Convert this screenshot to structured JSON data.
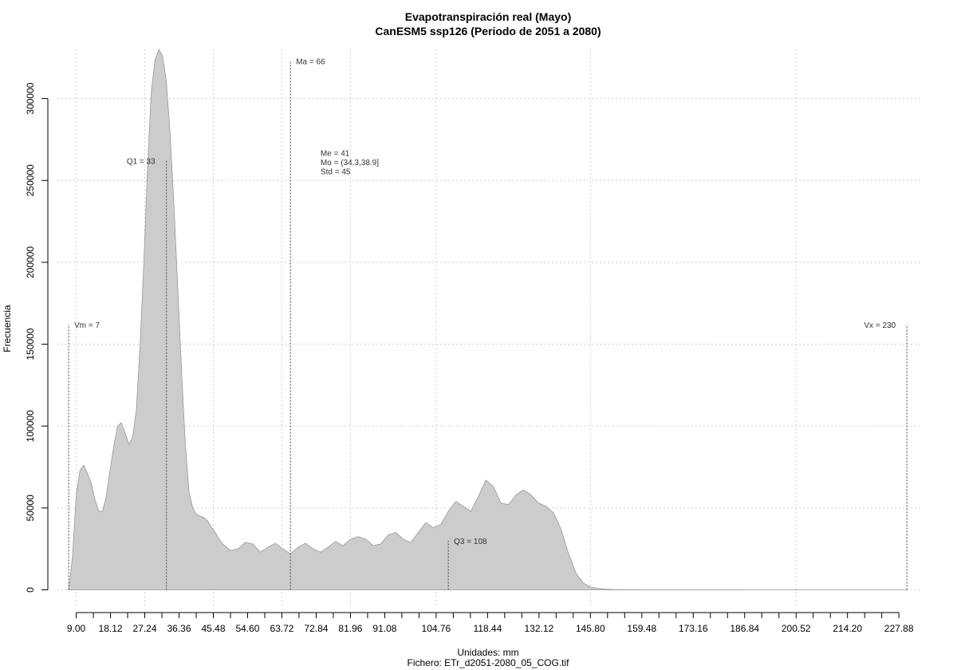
{
  "chart_data": {
    "type": "area",
    "title": "Evapotranspiración real (Mayo)",
    "subtitle": "CanESM5 ssp126 (Periodo de 2051 a 2080)",
    "xlabel": "Unidades: mm",
    "ylabel": "Frecuencia",
    "footer": "Fichero: ETr_d2051-2080_05_COG.tif",
    "xlim": [
      4,
      234
    ],
    "ylim": [
      -10000,
      330000
    ],
    "x_ticks": [
      9.0,
      18.12,
      27.24,
      36.36,
      45.48,
      54.6,
      63.72,
      72.84,
      81.96,
      91.08,
      104.76,
      118.44,
      132.12,
      145.8,
      159.48,
      173.16,
      186.84,
      200.52,
      214.2,
      227.88
    ],
    "x_tick_labels": [
      "9.00",
      "18.12",
      "27.24",
      "36.36",
      "45.48",
      "54.60",
      "63.72",
      "72.84",
      "81.96",
      "91.08",
      "104.76",
      "118.44",
      "132.12",
      "145.80",
      "159.48",
      "173.16",
      "186.84",
      "200.52",
      "214.20",
      "227.88"
    ],
    "x_minor_ticks": [
      9.0,
      13.56,
      18.12,
      22.68,
      27.24,
      31.8,
      36.36,
      40.92,
      45.48,
      50.04,
      54.6,
      59.16,
      63.72,
      68.28,
      72.84,
      77.4,
      81.96,
      86.52,
      91.08,
      95.64,
      100.2,
      104.76,
      109.32,
      113.88,
      118.44,
      123.0,
      127.56,
      132.12,
      136.68,
      141.24,
      145.8,
      150.36,
      154.92,
      159.48,
      164.04,
      168.6,
      173.16,
      177.72,
      182.28,
      186.84,
      191.4,
      195.96,
      200.52,
      205.08,
      209.64,
      214.2,
      218.76,
      223.32,
      227.88
    ],
    "y_ticks": [
      0,
      50000,
      100000,
      150000,
      200000,
      250000,
      300000
    ],
    "y_tick_labels": [
      "0",
      "50000",
      "100000",
      "150000",
      "200000",
      "250000",
      "300000"
    ],
    "x_grid": [
      9.0,
      27.24,
      45.48,
      63.72,
      81.96,
      104.76,
      145.8,
      200.52
    ],
    "grid": true,
    "series": [
      {
        "fill_color": "#cccccc",
        "line_color": "#999999",
        "x": [
          7,
          8,
          9,
          10,
          11,
          12,
          13,
          14,
          15,
          16,
          17,
          18,
          19,
          20,
          21,
          22,
          23,
          24,
          25,
          26,
          27,
          28,
          29,
          30,
          31,
          32,
          33,
          34,
          35,
          36,
          37,
          38,
          39,
          40,
          41,
          42,
          43,
          44,
          45,
          46,
          47,
          48,
          49,
          50,
          52,
          54,
          56,
          58,
          60,
          62,
          64,
          66,
          68,
          70,
          72,
          74,
          76,
          78,
          80,
          82,
          84,
          86,
          88,
          90,
          92,
          94,
          96,
          98,
          100,
          102,
          104,
          106,
          108,
          110,
          112,
          114,
          116,
          118,
          120,
          122,
          124,
          126,
          128,
          130,
          132,
          134,
          136,
          138,
          140,
          142,
          144,
          146,
          148,
          150,
          152,
          154,
          156,
          158,
          160,
          162,
          164,
          166,
          168,
          170,
          175,
          180,
          190,
          200,
          210,
          220,
          230
        ],
        "y": [
          0,
          20000,
          58000,
          73000,
          76000,
          71000,
          65000,
          55000,
          48000,
          48000,
          57000,
          73000,
          88000,
          100000,
          102000,
          96000,
          89000,
          93000,
          110000,
          150000,
          200000,
          260000,
          305000,
          324000,
          330000,
          326000,
          310000,
          278000,
          235000,
          185000,
          135000,
          90000,
          60000,
          50000,
          46000,
          45000,
          44000,
          42000,
          38000,
          35000,
          31000,
          28000,
          26000,
          24000,
          25000,
          29000,
          28000,
          23000,
          26000,
          28500,
          25000,
          22000,
          26000,
          28500,
          25000,
          23000,
          26000,
          29500,
          27000,
          31000,
          32500,
          31000,
          27000,
          28000,
          33500,
          35000,
          31000,
          29000,
          35000,
          41000,
          38000,
          40000,
          48000,
          54000,
          51000,
          48000,
          57000,
          67000,
          63000,
          53000,
          52000,
          58000,
          61000,
          58000,
          53000,
          51000,
          47000,
          37000,
          22000,
          10000,
          4000,
          1500,
          800,
          400,
          200,
          150,
          100,
          80,
          60,
          50,
          40,
          30,
          20,
          10,
          5,
          3,
          2,
          1,
          0,
          0,
          0
        ]
      }
    ],
    "vlines": [
      {
        "x": 7,
        "top": 162000,
        "label": "Vm = 7",
        "label_pos": "right"
      },
      {
        "x": 33,
        "top": 262000,
        "label": "Q1 = 33",
        "label_pos": "left"
      },
      {
        "x": 66,
        "top": 323000,
        "label": "Ma = 66",
        "label_pos": "right"
      },
      {
        "x": 108,
        "top": 30000,
        "label": "Q3 = 108",
        "label_pos": "right"
      },
      {
        "x": 230,
        "top": 162000,
        "label": "Vx = 230",
        "label_pos": "left"
      }
    ],
    "stats_block": {
      "x": 74,
      "y": 265000,
      "lines": [
        "Me = 41",
        "Mo = (34.3,38.9]",
        "Std = 45"
      ]
    }
  }
}
